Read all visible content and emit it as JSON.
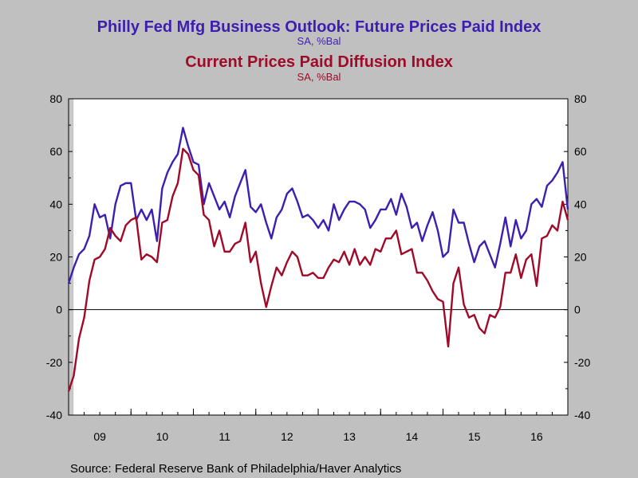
{
  "chart_data": {
    "type": "line",
    "title": "Philly Fed Mfg Business Outlook: Future Prices Paid Index",
    "title_units": "SA, %Bal",
    "subtitle": "Current Prices Paid Diffusion Index",
    "subtitle_units": "SA, %Bal",
    "source": "Source:  Federal Reserve Bank of Philadelphia/Haver Analytics",
    "x_start": 2009.0,
    "x_step": 0.0833333,
    "xlim": [
      2009.0,
      2017.0
    ],
    "ylim": [
      -40,
      80
    ],
    "y_ticks": [
      "80",
      "60",
      "40",
      "20",
      "0",
      "-20",
      "-40"
    ],
    "y_tick_values": [
      80,
      60,
      40,
      20,
      0,
      -20,
      -40
    ],
    "x_ticks": [
      "09",
      "10",
      "11",
      "12",
      "13",
      "14",
      "15",
      "16"
    ],
    "x_tick_values": [
      2009.5,
      2010.5,
      2011.5,
      2012.5,
      2013.5,
      2014.5,
      2015.5,
      2016.5
    ],
    "shaded_region": [
      2009.0,
      2009.08
    ],
    "series": [
      {
        "name": "Philly Fed Mfg Business Outlook: Future Prices Paid Index",
        "color": "#3d1fb0",
        "values": [
          10,
          16,
          21,
          23,
          28,
          40,
          35,
          36,
          27,
          40,
          47,
          48,
          48,
          34,
          38,
          34,
          38,
          26,
          46,
          52,
          56,
          59,
          69,
          62,
          56,
          55,
          40,
          48,
          43,
          38,
          41,
          35,
          43,
          48,
          53,
          39,
          37,
          40,
          33,
          27,
          35,
          38,
          44,
          46,
          41,
          35,
          36,
          34,
          31,
          34,
          30,
          40,
          34,
          38,
          41,
          41,
          40,
          38,
          31,
          34,
          38,
          38,
          42,
          36,
          44,
          39,
          31,
          33,
          26,
          32,
          37,
          30,
          20,
          22,
          38,
          33,
          33,
          25,
          18,
          24,
          26,
          21,
          16,
          25,
          35,
          24,
          34,
          27,
          30,
          40,
          42,
          39,
          47,
          49,
          52,
          56,
          38
        ]
      },
      {
        "name": "Current Prices Paid Diffusion Index",
        "color": "#a00a28",
        "values": [
          -31,
          -25,
          -11,
          -3,
          11,
          19,
          20,
          23,
          31,
          28,
          26,
          32,
          34,
          35,
          19,
          21,
          20,
          18,
          33,
          34,
          43,
          48,
          61,
          59,
          53,
          51,
          36,
          34,
          24,
          30,
          22,
          22,
          25,
          26,
          33,
          18,
          22,
          10,
          1,
          9,
          16,
          13,
          18,
          22,
          20,
          13,
          13,
          14,
          12,
          12,
          16,
          19,
          18,
          22,
          17,
          23,
          17,
          20,
          17,
          23,
          22,
          27,
          27,
          30,
          21,
          22,
          23,
          14,
          14,
          11,
          7,
          4,
          3,
          -14,
          10,
          16,
          2,
          -3,
          -2,
          -7,
          -9,
          -2,
          -3,
          1,
          14,
          14,
          21,
          12,
          19,
          21,
          9,
          27,
          28,
          32,
          30,
          41,
          34
        ]
      }
    ]
  }
}
